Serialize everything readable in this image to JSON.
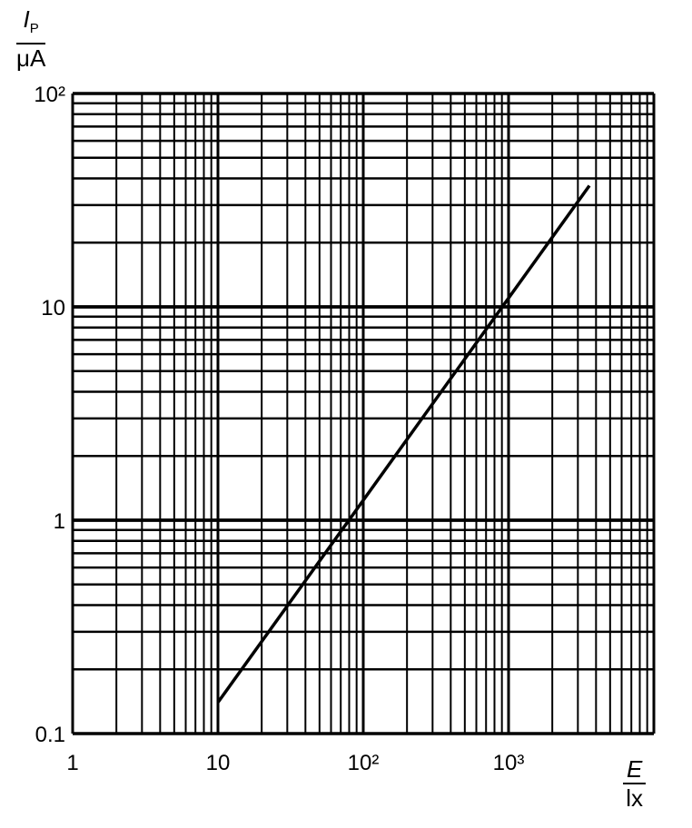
{
  "chart_data": {
    "type": "line",
    "x_scale": "log",
    "y_scale": "log",
    "xlim": [
      1,
      10000
    ],
    "ylim": [
      0.1,
      100
    ],
    "grid": true,
    "ylabel": {
      "symbol": "I",
      "subscript": "P",
      "unit": "μA"
    },
    "xlabel": {
      "symbol": "E",
      "unit": "lx"
    },
    "x_ticks": [
      {
        "value": 1,
        "label": "1"
      },
      {
        "value": 10,
        "label": "10"
      },
      {
        "value": 100,
        "label": "10²"
      },
      {
        "value": 1000,
        "label": "10³"
      }
    ],
    "y_ticks": [
      {
        "value": 0.1,
        "label": "0.1"
      },
      {
        "value": 1,
        "label": "1"
      },
      {
        "value": 10,
        "label": "10"
      },
      {
        "value": 100,
        "label": "10²"
      }
    ],
    "series": [
      {
        "x": [
          10,
          3600
        ],
        "y": [
          0.14,
          37
        ],
        "color": "#000000"
      }
    ]
  }
}
